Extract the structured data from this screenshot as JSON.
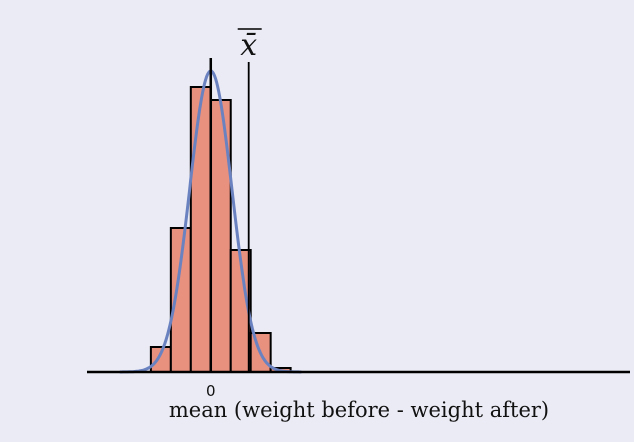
{
  "chart_data": {
    "type": "bar",
    "subtype": "histogram with fitted normal curve",
    "title": "",
    "xlabel": "mean (weight before - weight after)",
    "ylabel": "",
    "xticks": [
      {
        "value": 0,
        "label": "0"
      }
    ],
    "xlim": [
      -6.2,
      21
    ],
    "bin_edges": [
      -3,
      -2,
      -1,
      0,
      1,
      2,
      3,
      4
    ],
    "values": [
      25,
      144,
      285,
      272,
      122,
      39,
      4
    ],
    "normal_curve": {
      "mean": 0,
      "sd": 1.06,
      "peak": 301
    },
    "reference_lines": [
      {
        "name": "zero",
        "x": 0
      },
      {
        "name": "xbar",
        "x": 1.9,
        "label": "x̄"
      }
    ],
    "grid": false,
    "colors": {
      "bars": "#e8917f",
      "bar_edge": "#000000",
      "curve": "#6b82c0",
      "background": "#eaebf4"
    }
  }
}
